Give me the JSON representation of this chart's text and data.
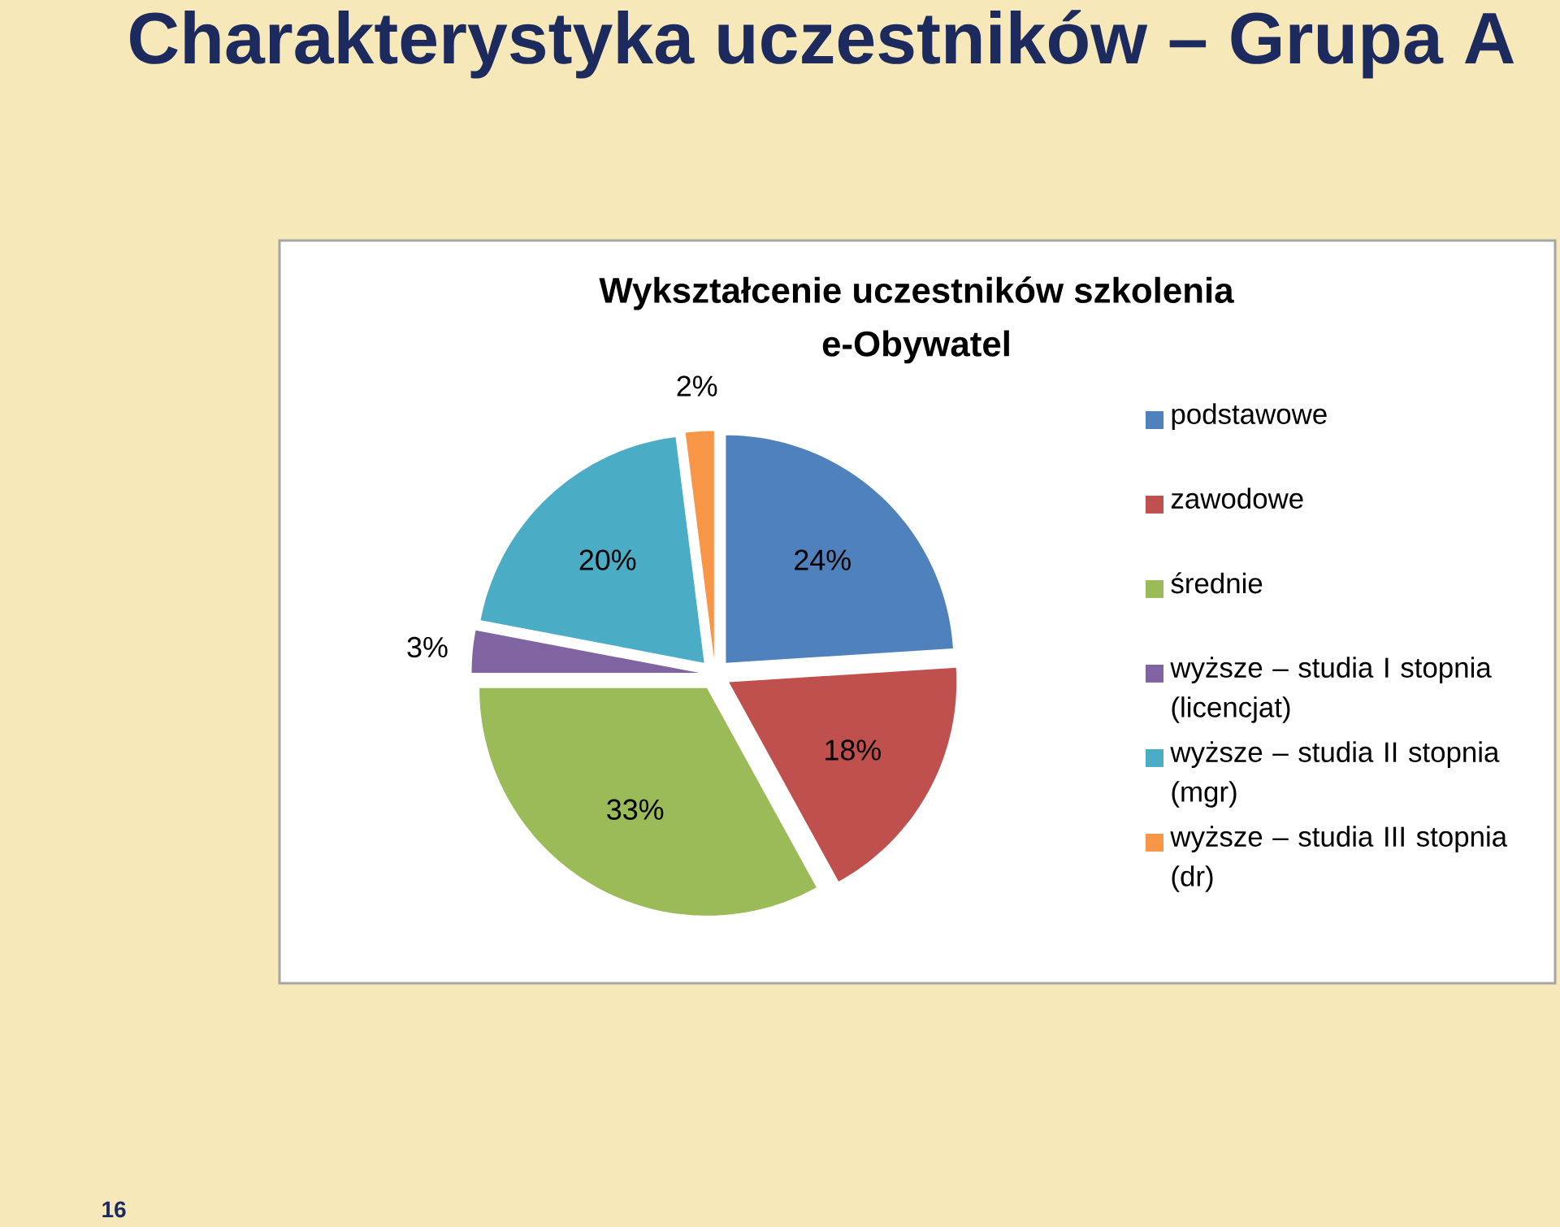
{
  "chart_data": {
    "type": "pie",
    "title": "Charakterystyka uczestników – Grupa A",
    "subtitle": "Wykształcenie uczestników szkolenia e-Obywatel",
    "categories": [
      "podstawowe",
      "zawodowe",
      "średnie",
      "wyższe – studia I stopnia (licencjat)",
      "wyższe – studia II stopnia (mgr)",
      "wyższe – studia III stopnia (dr)"
    ],
    "values": [
      24,
      18,
      33,
      3,
      20,
      2
    ],
    "value_labels": [
      "24%",
      "18%",
      "33%",
      "3%",
      "20%",
      "2%"
    ],
    "colors": [
      "#4f81bd",
      "#c0504d",
      "#9bbb59",
      "#8064a2",
      "#4bacc6",
      "#f79646"
    ],
    "legend": "right",
    "annotations": [
      "16"
    ]
  }
}
